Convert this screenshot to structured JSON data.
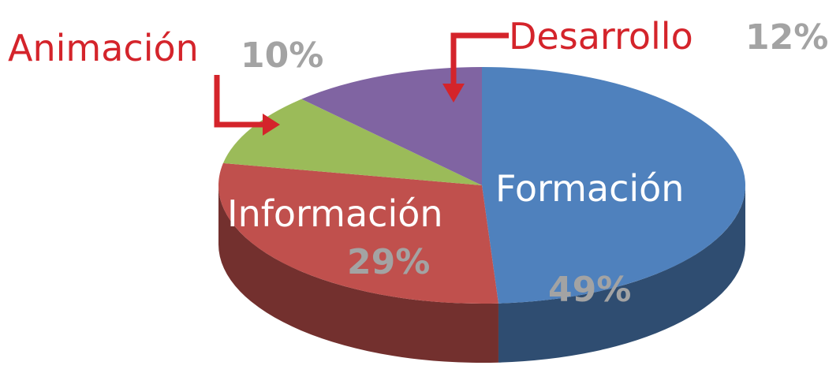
{
  "chart_data": {
    "type": "pie3d",
    "categories": [
      "Formación",
      "Información",
      "Animación",
      "Desarrollo"
    ],
    "values": [
      49,
      29,
      10,
      12
    ],
    "value_labels": [
      "49%",
      "29%",
      "10%",
      "12%"
    ],
    "colors": [
      "#4f81bd",
      "#c0504d",
      "#9bbb59",
      "#8064a2"
    ]
  }
}
